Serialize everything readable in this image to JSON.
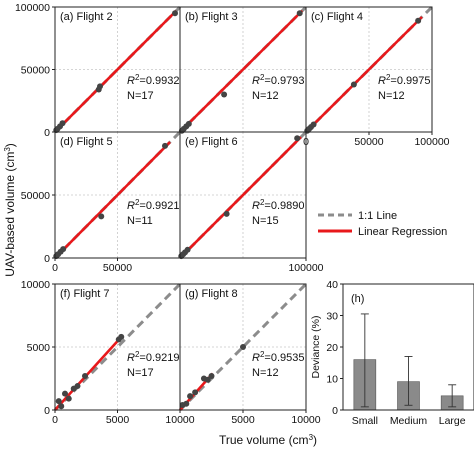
{
  "figure": {
    "ylabel": "UAV-based volume (cm",
    "ylabel_sup": "3",
    "ylabel_end": ")",
    "xlabel": "True volume (cm",
    "xlabel_sup": "3",
    "xlabel_end": ")"
  },
  "legend": {
    "line11": "1:1 Line",
    "regression": "Linear Regression"
  },
  "colors": {
    "regression": "#e8181b",
    "one_to_one": "#8c8c8c",
    "points": "#444444",
    "bar": "#8a8a8a",
    "grid": "#c8c8c8"
  },
  "chart_data": [
    {
      "type": "scatter",
      "label": "(a) Flight 2",
      "r2_prefix": "R",
      "r2_sup": "2",
      "r2_value": "=0.9932",
      "n": "N=17",
      "xlim": [
        0,
        100000
      ],
      "ylim": [
        0,
        100000
      ],
      "x": [
        1000,
        2000,
        4000,
        6000,
        35000,
        36000,
        96000
      ],
      "y": [
        1500,
        2500,
        4500,
        7000,
        34000,
        36500,
        95000
      ],
      "regression": [
        [
          0,
          0
        ],
        [
          97000,
          97000
        ]
      ]
    },
    {
      "type": "scatter",
      "label": "(b) Flight 3",
      "r2_prefix": "R",
      "r2_sup": "2",
      "r2_value": "=0.9793",
      "n": "N=12",
      "xlim": [
        0,
        100000
      ],
      "ylim": [
        0,
        100000
      ],
      "x": [
        1500,
        3000,
        5000,
        7000,
        35000,
        95000
      ],
      "y": [
        1000,
        2500,
        4500,
        6500,
        30000,
        95000
      ],
      "regression": [
        [
          0,
          0
        ],
        [
          97000,
          97000
        ]
      ]
    },
    {
      "type": "scatter",
      "label": "(c) Flight 4",
      "r2_prefix": "R",
      "r2_sup": "2",
      "r2_value": "=0.9975",
      "n": "N=12",
      "xlim": [
        0,
        100000
      ],
      "ylim": [
        0,
        100000
      ],
      "x": [
        1000,
        2500,
        4000,
        6000,
        38000,
        89000
      ],
      "y": [
        1000,
        2500,
        4000,
        6000,
        38000,
        89000
      ],
      "regression": [
        [
          0,
          0
        ],
        [
          92000,
          92000
        ]
      ]
    },
    {
      "type": "scatter",
      "label": "(d) Flight 5",
      "r2_prefix": "R",
      "r2_sup": "2",
      "r2_value": "=0.9921",
      "n": "N=11",
      "xlim": [
        0,
        100000
      ],
      "ylim": [
        0,
        100000
      ],
      "x": [
        1000,
        2500,
        4500,
        6500,
        37000,
        88000
      ],
      "y": [
        1500,
        3000,
        5000,
        7000,
        33000,
        89000
      ],
      "regression": [
        [
          0,
          0
        ],
        [
          92000,
          92000
        ]
      ]
    },
    {
      "type": "scatter",
      "label": "(e) Flight 6",
      "r2_prefix": "R",
      "r2_sup": "2",
      "r2_value": "=0.9890",
      "n": "N=15",
      "xlim": [
        0,
        100000
      ],
      "ylim": [
        0,
        100000
      ],
      "x": [
        1000,
        2500,
        4000,
        6000,
        37000,
        93000
      ],
      "y": [
        1500,
        3000,
        4500,
        6500,
        35000,
        95000
      ],
      "regression": [
        [
          0,
          0
        ],
        [
          96000,
          96000
        ]
      ]
    },
    {
      "type": "scatter",
      "label": "(f) Flight 7",
      "r2_prefix": "R",
      "r2_sup": "2",
      "r2_value": "=0.9219",
      "n": "N=17",
      "xlim": [
        0,
        10000
      ],
      "ylim": [
        0,
        10000
      ],
      "x": [
        300,
        500,
        800,
        1100,
        1500,
        1800,
        2400,
        5100,
        5300
      ],
      "y": [
        700,
        300,
        1300,
        900,
        1700,
        1900,
        2700,
        5600,
        5800
      ],
      "regression": [
        [
          0,
          0
        ],
        [
          5400,
          5900
        ]
      ]
    },
    {
      "type": "scatter",
      "label": "(g) Flight 8",
      "r2_prefix": "R",
      "r2_sup": "2",
      "r2_value": "=0.9535",
      "n": "N=12",
      "xlim": [
        0,
        10000
      ],
      "ylim": [
        0,
        10000
      ],
      "x": [
        200,
        500,
        800,
        1200,
        1900,
        2200,
        2500,
        5000
      ],
      "y": [
        400,
        500,
        1100,
        1400,
        2500,
        2400,
        2700,
        5000
      ],
      "regression": [
        [
          0,
          0
        ],
        [
          2600,
          2900
        ]
      ]
    },
    {
      "type": "bar",
      "label": "(h)",
      "ylabel": "Deviance (%)",
      "categories": [
        "Small",
        "Medium",
        "Large"
      ],
      "values": [
        16,
        9,
        4.5
      ],
      "err_low": [
        1,
        1.5,
        1
      ],
      "err_high": [
        30.5,
        17,
        8
      ],
      "ylim": [
        0,
        40
      ],
      "yticks": [
        "0",
        "10",
        "20",
        "30",
        "40"
      ]
    }
  ]
}
